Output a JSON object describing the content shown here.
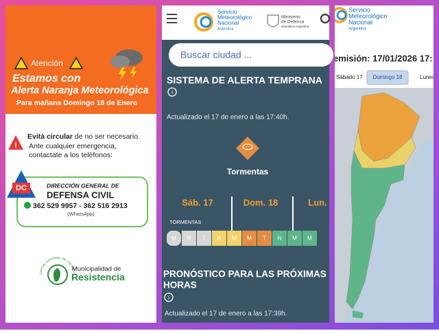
{
  "panel1": {
    "attention": "Atención",
    "headline1": "Estamos con",
    "headline2": "Alerta Naranja Meteorológica",
    "subline": "Para mañana Domingo 18 de Enero",
    "advice_bold": "Evitá circular",
    "advice_rest": " de no ser necesario.",
    "emergency1": "Ante cualquier emergencia,",
    "emergency2": "contactate a los teléfonos:",
    "dc_logo": "DC",
    "agency1": "DIRECCIÓN GENERAL DE",
    "agency2": "DEFENSA CIVIL",
    "phones": "362 529 9957 - 362 516 2913",
    "whatsapp": "(WhatsApp)",
    "seal_text": "CAPITAL NACIONAL DE LAS ESCULTURAS",
    "muni1": "Municipalidad de",
    "muni2": "Resistencia"
  },
  "panel2": {
    "logo_lines": [
      "Servicio",
      "Meteorológico",
      "Nacional",
      "Argentina"
    ],
    "ministry_lines": [
      "Ministerio",
      "de Defensa",
      "República Argentina"
    ],
    "search_placeholder": "Buscar ciudad ...",
    "alert_title": "SISTEMA DE ALERTA TEMPRANA",
    "alert_updated": "Actualizado el 17 de enero a las 17:40h.",
    "alert_type": "Tormentas",
    "days": [
      "Sáb. 17",
      "Dom. 18",
      "Lun."
    ],
    "row_label": "TORMENTAS",
    "cells": [
      {
        "label": "M",
        "color": "#d6d6d6"
      },
      {
        "label": "M",
        "color": "#d6d6d6"
      },
      {
        "label": "T",
        "color": "#d6d6d6"
      },
      {
        "label": "N",
        "color": "#f3d36a"
      },
      {
        "label": "M",
        "color": "#f3d36a"
      },
      {
        "label": "M",
        "color": "#e58d43"
      },
      {
        "label": "T",
        "color": "#e58d43"
      },
      {
        "label": "N",
        "color": "#5db58a"
      },
      {
        "label": "M",
        "color": "#5db58a"
      },
      {
        "label": "M",
        "color": "#5db58a"
      }
    ],
    "forecast_title1": "PRONÓSTICO PARA LAS PRÓXIMAS",
    "forecast_title2": "HORAS",
    "forecast_updated": "Actualizado el 17 de enero a las 17:39h."
  },
  "panel3": {
    "logo_lines": [
      "Servicio",
      "Meteorológico",
      "Nacional",
      "Argentina"
    ],
    "emission": "emisión: 17/01/2026 17:",
    "tabs": [
      "Sábado 17",
      "Domingo 18",
      "Lunes"
    ]
  }
}
